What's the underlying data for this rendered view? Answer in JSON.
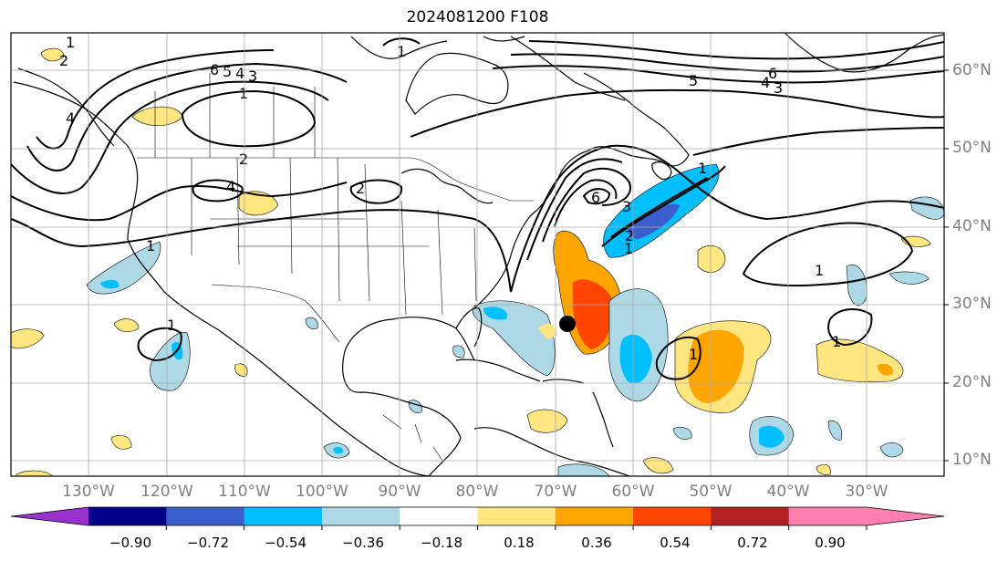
{
  "title": "2024081200 F108",
  "lat_labels": [
    "60°N",
    "50°N",
    "40°N",
    "30°N",
    "20°N",
    "10°N"
  ],
  "lon_labels": [
    "130°W",
    "120°W",
    "110°W",
    "100°W",
    "90°W",
    "80°W",
    "70°W",
    "60°W",
    "50°W",
    "40°W",
    "30°W"
  ],
  "colorbar": {
    "ticks": [
      "−0.90",
      "−0.72",
      "−0.54",
      "−0.36",
      "−0.18",
      "0.18",
      "0.36",
      "0.54",
      "0.72",
      "0.90"
    ],
    "colors": [
      "#9932cc",
      "#00008b",
      "#3a5fcd",
      "#00bfff",
      "#add8e6",
      "#ffffff",
      "#ffe680",
      "#ffa500",
      "#ff4500",
      "#b22222",
      "#ff7fb0"
    ]
  },
  "contour_labels": [
    "1",
    "2",
    "4",
    "6",
    "5",
    "4",
    "3",
    "1",
    "2",
    "1",
    "6",
    "5",
    "4",
    "3",
    "4",
    "1",
    "2",
    "1",
    "3",
    "2",
    "1",
    "1",
    "1",
    "1",
    "1",
    "6"
  ],
  "marker": {
    "type": "black-dot",
    "lon": -70,
    "lat": 27.5
  }
}
